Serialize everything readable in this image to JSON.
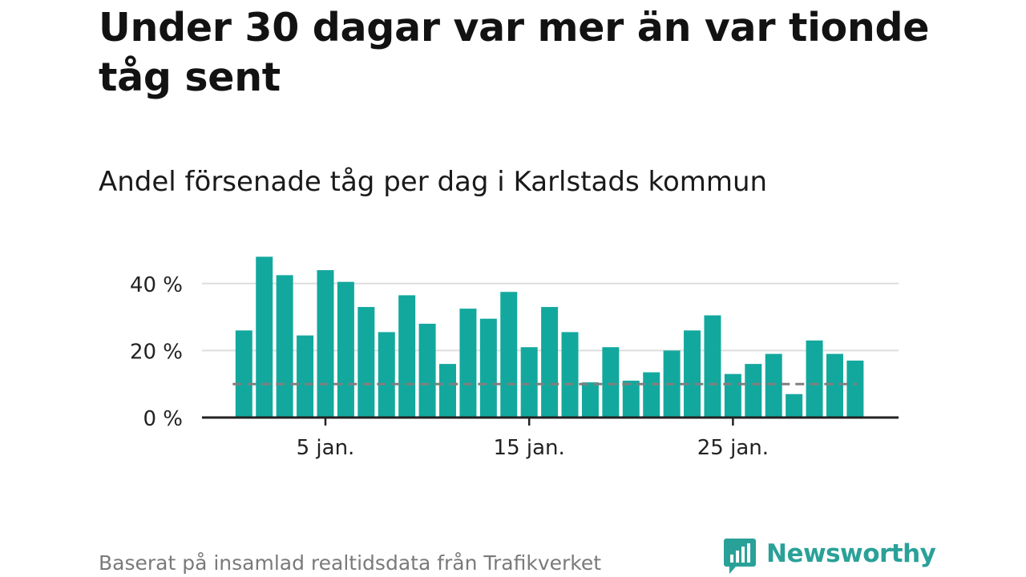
{
  "title": "Under 30 dagar var mer än var tionde tåg sent",
  "subtitle": "Andel försenade tåg per dag i Karlstads kommun",
  "footer": "Baserat på insamlad realtidsdata från Trafikverket",
  "brand": "Newsworthy",
  "colors": {
    "bar": "#13a89e",
    "reference_line": "#7f7f7f",
    "grid": "#dddddd",
    "axis": "#222222",
    "brand": "#2aa198"
  },
  "chart_data": {
    "type": "bar",
    "x": [
      1,
      2,
      3,
      4,
      5,
      6,
      7,
      8,
      9,
      10,
      11,
      12,
      13,
      14,
      15,
      16,
      17,
      18,
      19,
      20,
      21,
      22,
      23,
      24,
      25,
      26,
      27,
      28,
      29,
      30,
      31
    ],
    "values": [
      26,
      48,
      42.5,
      24.5,
      44,
      40.5,
      33,
      25.5,
      36.5,
      28,
      16,
      32.5,
      29.5,
      37.5,
      21,
      33,
      25.5,
      10.5,
      21,
      11,
      13.5,
      20,
      26,
      30.5,
      13,
      16,
      19,
      7,
      23,
      19,
      17
    ],
    "xticks": [
      5,
      15,
      25
    ],
    "xtick_labels": [
      "5 jan.",
      "15 jan.",
      "25 jan."
    ],
    "yticks": [
      0,
      20,
      40
    ],
    "ytick_labels": [
      "0 %",
      "20 %",
      "40 %"
    ],
    "ylim": [
      0,
      50
    ],
    "reference_value": 10,
    "grid": true
  }
}
